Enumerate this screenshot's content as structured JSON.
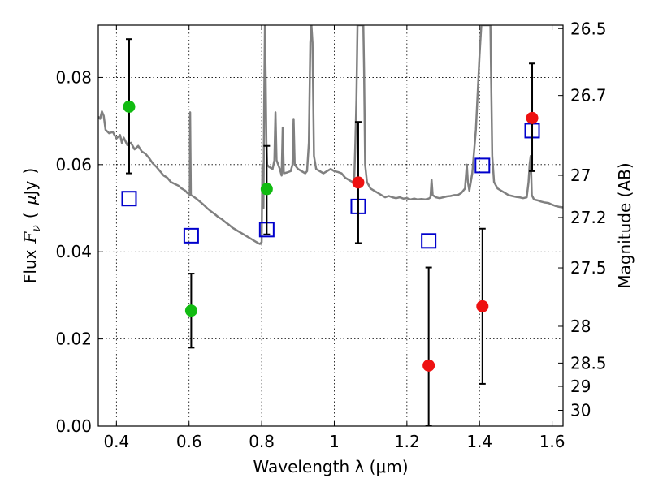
{
  "chart_data": {
    "type": "scatter",
    "xlabel": "Wavelength  λ (μm)",
    "ylabel": "Flux  F_ν  ( μJy )",
    "ylabel_parts": {
      "prefix": "Flux",
      "symbol": "F",
      "subscript": "ν",
      "open_paren": "(",
      "unit_prefix": "μ",
      "unit": "Jy",
      "close_paren": ")"
    },
    "y2label": "Magnitude (AB)",
    "xlim": [
      0.35,
      1.63
    ],
    "ylim": [
      0.0,
      0.092
    ],
    "grid": true,
    "x_ticks": [
      0.4,
      0.6,
      0.8,
      1.0,
      1.2,
      1.4,
      1.6
    ],
    "x_tick_labels": [
      "0.4",
      "0.6",
      "0.8",
      "1",
      "1.2",
      "1.4",
      "1.6"
    ],
    "y_ticks": [
      0.0,
      0.02,
      0.04,
      0.06,
      0.08
    ],
    "y_tick_labels": [
      "0.00",
      "0.02",
      "0.04",
      "0.06",
      "0.08"
    ],
    "y2_ticks": [
      26.5,
      26.7,
      27.0,
      27.2,
      27.5,
      28.0,
      28.5,
      29.0,
      30.0
    ],
    "y2_tick_labels": [
      "26.5",
      "26.7",
      "27",
      "27.2",
      "27.5",
      "28",
      "28.5",
      "29",
      "30"
    ],
    "colors": {
      "green": "#11bb11",
      "red": "#ee1111",
      "model_box": "#0000cc",
      "sed_line": "#808080"
    },
    "series": [
      {
        "marker": "circle",
        "color": "#11bb11",
        "points": [
          {
            "x": 0.435,
            "y": 0.0733,
            "err_low": 0.058,
            "err_high": 0.0888
          },
          {
            "x": 0.606,
            "y": 0.0265,
            "err_low": 0.018,
            "err_high": 0.035
          },
          {
            "x": 0.814,
            "y": 0.0544,
            "err_low": 0.044,
            "err_high": 0.0643
          }
        ]
      },
      {
        "marker": "circle",
        "color": "#ee1111",
        "points": [
          {
            "x": 1.066,
            "y": 0.0559,
            "err_low": 0.042,
            "err_high": 0.0698
          },
          {
            "x": 1.26,
            "y": 0.0139,
            "err_low": 0.0,
            "err_high": 0.0364
          },
          {
            "x": 1.408,
            "y": 0.0275,
            "err_low": 0.0097,
            "err_high": 0.0453
          },
          {
            "x": 1.545,
            "y": 0.0707,
            "err_low": 0.0585,
            "err_high": 0.0832
          }
        ]
      },
      {
        "marker": "open-square",
        "color": "#0000cc",
        "points": [
          {
            "x": 0.435,
            "y": 0.0522
          },
          {
            "x": 0.606,
            "y": 0.0437
          },
          {
            "x": 0.814,
            "y": 0.0451
          },
          {
            "x": 1.066,
            "y": 0.0504
          },
          {
            "x": 1.26,
            "y": 0.0425
          },
          {
            "x": 1.408,
            "y": 0.0598
          },
          {
            "x": 1.545,
            "y": 0.0678
          }
        ]
      },
      {
        "marker": "line",
        "color": "#808080",
        "points": [
          [
            0.35,
            0.071
          ],
          [
            0.355,
            0.0705
          ],
          [
            0.36,
            0.0722
          ],
          [
            0.365,
            0.0712
          ],
          [
            0.37,
            0.068
          ],
          [
            0.38,
            0.0672
          ],
          [
            0.39,
            0.0675
          ],
          [
            0.4,
            0.066
          ],
          [
            0.41,
            0.0668
          ],
          [
            0.415,
            0.065
          ],
          [
            0.42,
            0.0662
          ],
          [
            0.43,
            0.0645
          ],
          [
            0.44,
            0.065
          ],
          [
            0.45,
            0.0635
          ],
          [
            0.46,
            0.0643
          ],
          [
            0.47,
            0.063
          ],
          [
            0.48,
            0.0625
          ],
          [
            0.49,
            0.0615
          ],
          [
            0.5,
            0.0603
          ],
          [
            0.51,
            0.0595
          ],
          [
            0.52,
            0.0585
          ],
          [
            0.53,
            0.0575
          ],
          [
            0.54,
            0.057
          ],
          [
            0.55,
            0.056
          ],
          [
            0.56,
            0.0556
          ],
          [
            0.57,
            0.0552
          ],
          [
            0.58,
            0.0545
          ],
          [
            0.59,
            0.054
          ],
          [
            0.595,
            0.0535
          ],
          [
            0.6,
            0.0533
          ],
          [
            0.602,
            0.053
          ],
          [
            0.603,
            0.072
          ],
          [
            0.605,
            0.053
          ],
          [
            0.61,
            0.0528
          ],
          [
            0.62,
            0.0522
          ],
          [
            0.63,
            0.0515
          ],
          [
            0.64,
            0.0508
          ],
          [
            0.65,
            0.05
          ],
          [
            0.66,
            0.0493
          ],
          [
            0.67,
            0.0487
          ],
          [
            0.68,
            0.048
          ],
          [
            0.69,
            0.0475
          ],
          [
            0.7,
            0.0468
          ],
          [
            0.71,
            0.0462
          ],
          [
            0.72,
            0.0455
          ],
          [
            0.73,
            0.045
          ],
          [
            0.74,
            0.0445
          ],
          [
            0.75,
            0.044
          ],
          [
            0.76,
            0.0435
          ],
          [
            0.77,
            0.043
          ],
          [
            0.78,
            0.0425
          ],
          [
            0.79,
            0.042
          ],
          [
            0.795,
            0.0418
          ],
          [
            0.8,
            0.0422
          ],
          [
            0.802,
            0.06
          ],
          [
            0.805,
            0.05
          ],
          [
            0.807,
            0.075
          ],
          [
            0.809,
            0.092
          ],
          [
            0.811,
            0.08
          ],
          [
            0.813,
            0.065
          ],
          [
            0.815,
            0.06
          ],
          [
            0.82,
            0.0595
          ],
          [
            0.83,
            0.059
          ],
          [
            0.835,
            0.061
          ],
          [
            0.838,
            0.072
          ],
          [
            0.841,
            0.061
          ],
          [
            0.85,
            0.059
          ],
          [
            0.855,
            0.0575
          ],
          [
            0.858,
            0.0685
          ],
          [
            0.861,
            0.058
          ],
          [
            0.87,
            0.0582
          ],
          [
            0.88,
            0.0585
          ],
          [
            0.885,
            0.06
          ],
          [
            0.888,
            0.0705
          ],
          [
            0.891,
            0.06
          ],
          [
            0.9,
            0.059
          ],
          [
            0.91,
            0.0585
          ],
          [
            0.92,
            0.058
          ],
          [
            0.925,
            0.0585
          ],
          [
            0.93,
            0.065
          ],
          [
            0.934,
            0.088
          ],
          [
            0.937,
            0.092
          ],
          [
            0.94,
            0.088
          ],
          [
            0.944,
            0.062
          ],
          [
            0.95,
            0.059
          ],
          [
            0.96,
            0.0585
          ],
          [
            0.97,
            0.058
          ],
          [
            0.98,
            0.0585
          ],
          [
            0.99,
            0.059
          ],
          [
            1.0,
            0.0585
          ],
          [
            1.01,
            0.0583
          ],
          [
            1.02,
            0.058
          ],
          [
            1.03,
            0.057
          ],
          [
            1.04,
            0.0565
          ],
          [
            1.05,
            0.056
          ],
          [
            1.055,
            0.0565
          ],
          [
            1.058,
            0.065
          ],
          [
            1.061,
            0.075
          ],
          [
            1.064,
            0.092
          ],
          [
            1.08,
            0.092
          ],
          [
            1.082,
            0.082
          ],
          [
            1.085,
            0.06
          ],
          [
            1.09,
            0.056
          ],
          [
            1.1,
            0.0545
          ],
          [
            1.11,
            0.054
          ],
          [
            1.12,
            0.0535
          ],
          [
            1.13,
            0.053
          ],
          [
            1.14,
            0.0525
          ],
          [
            1.15,
            0.0528
          ],
          [
            1.16,
            0.0525
          ],
          [
            1.17,
            0.0523
          ],
          [
            1.18,
            0.0525
          ],
          [
            1.19,
            0.0522
          ],
          [
            1.2,
            0.0523
          ],
          [
            1.21,
            0.052
          ],
          [
            1.22,
            0.0522
          ],
          [
            1.23,
            0.052
          ],
          [
            1.24,
            0.0521
          ],
          [
            1.25,
            0.052
          ],
          [
            1.26,
            0.0522
          ],
          [
            1.265,
            0.0525
          ],
          [
            1.268,
            0.0565
          ],
          [
            1.271,
            0.053
          ],
          [
            1.28,
            0.0525
          ],
          [
            1.29,
            0.0523
          ],
          [
            1.3,
            0.0525
          ],
          [
            1.31,
            0.0527
          ],
          [
            1.32,
            0.0528
          ],
          [
            1.33,
            0.053
          ],
          [
            1.34,
            0.053
          ],
          [
            1.35,
            0.0535
          ],
          [
            1.36,
            0.0545
          ],
          [
            1.365,
            0.06
          ],
          [
            1.368,
            0.056
          ],
          [
            1.372,
            0.054
          ],
          [
            1.38,
            0.058
          ],
          [
            1.39,
            0.068
          ],
          [
            1.4,
            0.085
          ],
          [
            1.405,
            0.092
          ],
          [
            1.43,
            0.092
          ],
          [
            1.432,
            0.08
          ],
          [
            1.435,
            0.062
          ],
          [
            1.44,
            0.056
          ],
          [
            1.45,
            0.0545
          ],
          [
            1.46,
            0.054
          ],
          [
            1.47,
            0.0535
          ],
          [
            1.48,
            0.053
          ],
          [
            1.49,
            0.0528
          ],
          [
            1.5,
            0.0526
          ],
          [
            1.51,
            0.0525
          ],
          [
            1.52,
            0.0523
          ],
          [
            1.53,
            0.0525
          ],
          [
            1.535,
            0.056
          ],
          [
            1.538,
            0.06
          ],
          [
            1.541,
            0.062
          ],
          [
            1.544,
            0.053
          ],
          [
            1.55,
            0.052
          ],
          [
            1.56,
            0.0518
          ],
          [
            1.57,
            0.0515
          ],
          [
            1.58,
            0.0513
          ],
          [
            1.59,
            0.0512
          ],
          [
            1.6,
            0.0508
          ],
          [
            1.61,
            0.0505
          ],
          [
            1.62,
            0.0503
          ],
          [
            1.63,
            0.0502
          ]
        ]
      }
    ]
  }
}
